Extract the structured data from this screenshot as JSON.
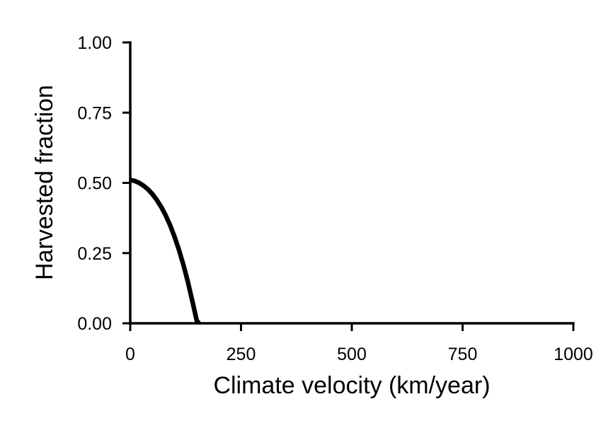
{
  "chart_data": {
    "type": "line",
    "title": "",
    "xlabel": "Climate velocity (km/year)",
    "ylabel": "Harvested fraction",
    "xlim": [
      0,
      1000
    ],
    "ylim": [
      0,
      1
    ],
    "x_ticks": [
      0,
      250,
      500,
      750,
      1000
    ],
    "x_tick_labels": [
      "0",
      "250",
      "500",
      "750",
      "1000"
    ],
    "y_ticks": [
      0,
      0.25,
      0.5,
      0.75,
      1.0
    ],
    "y_tick_labels": [
      "0.00",
      "0.25",
      "0.50",
      "0.75",
      "1.00"
    ],
    "grid": false,
    "legend": "none",
    "series": [
      {
        "color": "#000000",
        "x": [
          0,
          10,
          20,
          30,
          40,
          50,
          60,
          70,
          80,
          90,
          100,
          110,
          120,
          130,
          140,
          150,
          155
        ],
        "y": [
          0.51,
          0.507,
          0.5,
          0.49,
          0.477,
          0.46,
          0.439,
          0.414,
          0.384,
          0.349,
          0.308,
          0.261,
          0.208,
          0.148,
          0.08,
          0.01,
          0.0
        ]
      }
    ]
  }
}
